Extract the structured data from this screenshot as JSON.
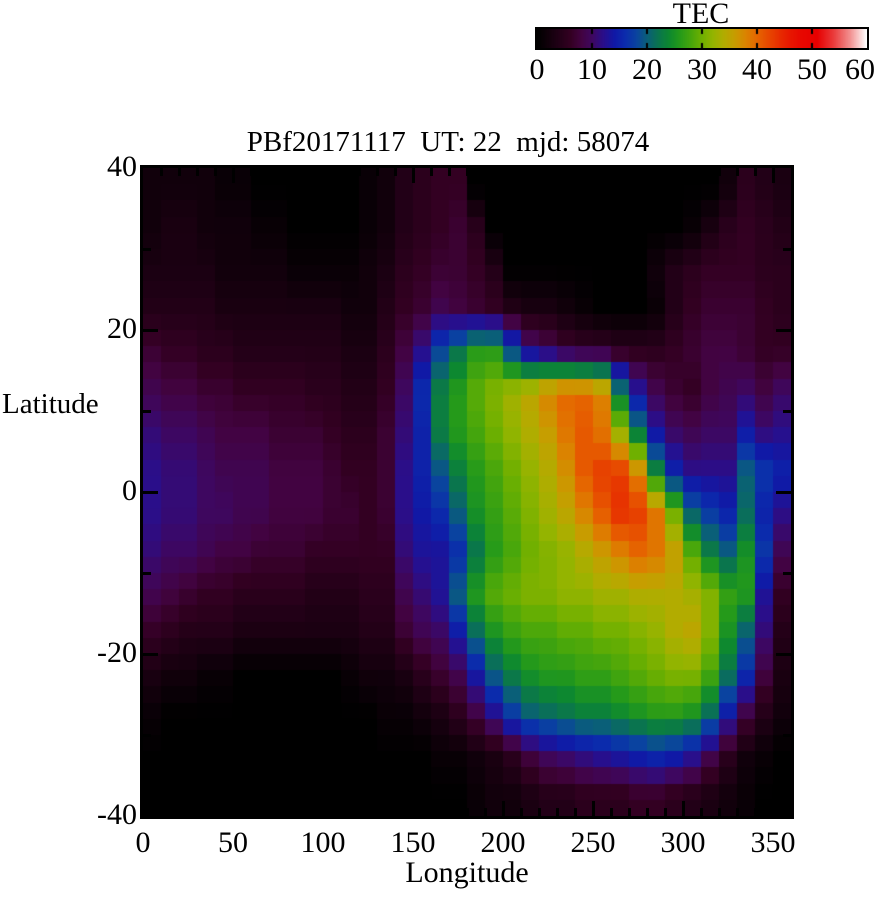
{
  "chart_data": {
    "type": "heatmap",
    "title": "PBf20171117  UT: 22  mjd: 58074",
    "xlabel": "Longitude",
    "ylabel": "Latitude",
    "xlim": [
      0,
      360
    ],
    "ylim": [
      -40,
      40
    ],
    "x_tick_labels": [
      0,
      50,
      100,
      150,
      200,
      250,
      300,
      350
    ],
    "y_tick_labels": [
      40,
      20,
      0,
      -20,
      -40
    ],
    "x_minor_step": 10,
    "y_minor_step": 10,
    "grid_lines": "off",
    "colorbar": {
      "title": "TEC",
      "min": 0,
      "max": 60,
      "tick_labels": [
        0,
        10,
        20,
        30,
        40,
        50,
        60
      ],
      "position": "top-right-horizontal"
    },
    "colormap_stops": [
      [
        0,
        "#000000"
      ],
      [
        3,
        "#1a0011"
      ],
      [
        6,
        "#330022"
      ],
      [
        8,
        "#420341"
      ],
      [
        10,
        "#3e0760"
      ],
      [
        12,
        "#2a0e8a"
      ],
      [
        14,
        "#1019a6"
      ],
      [
        16,
        "#0b2bac"
      ],
      [
        18,
        "#0a43a0"
      ],
      [
        20,
        "#0a5f78"
      ],
      [
        22,
        "#0a744f"
      ],
      [
        24,
        "#0d8830"
      ],
      [
        26,
        "#259a1a"
      ],
      [
        28,
        "#47a60c"
      ],
      [
        30,
        "#6fb000"
      ],
      [
        32,
        "#94b400"
      ],
      [
        34,
        "#b2ac00"
      ],
      [
        36,
        "#c89c00"
      ],
      [
        38,
        "#db8300"
      ],
      [
        40,
        "#e56700"
      ],
      [
        42,
        "#e74a00"
      ],
      [
        44,
        "#e72f00"
      ],
      [
        46,
        "#e71800"
      ],
      [
        48,
        "#e70800"
      ],
      [
        51,
        "#e60000"
      ],
      [
        54,
        "#ea3b3b"
      ],
      [
        57,
        "#f29090"
      ],
      [
        60,
        "#ffffff"
      ]
    ],
    "grid": {
      "lon_col_centers": [
        5,
        15,
        25,
        35,
        45,
        55,
        65,
        75,
        85,
        95,
        105,
        115,
        125,
        135,
        145,
        155,
        165,
        175,
        185,
        195,
        205,
        215,
        225,
        235,
        245,
        255,
        265,
        275,
        285,
        295,
        305,
        315,
        325,
        335,
        345,
        355
      ],
      "lat_row_centers": [
        37.5,
        32.5,
        27.5,
        22.5,
        17.5,
        12.5,
        7.5,
        2.5,
        -2.5,
        -7.5,
        -12.5,
        -17.5,
        -22.5,
        -27.5,
        -32.5,
        -37.5
      ],
      "tec_values": [
        [
          2,
          2,
          2,
          2,
          1,
          1,
          0,
          0,
          0,
          0,
          0,
          0,
          1,
          2,
          4,
          5,
          6,
          6,
          0,
          0,
          0,
          0,
          0,
          0,
          0,
          0,
          0,
          0,
          0,
          0,
          0,
          0,
          2,
          5,
          4,
          3
        ],
        [
          2,
          3,
          3,
          2,
          2,
          2,
          1,
          1,
          0,
          0,
          0,
          0,
          1,
          2,
          4,
          5,
          6,
          7,
          5,
          0,
          0,
          0,
          0,
          0,
          0,
          0,
          0,
          0,
          0,
          0,
          1,
          3,
          5,
          6,
          5,
          4
        ],
        [
          3,
          3,
          3,
          3,
          2,
          2,
          2,
          2,
          1,
          1,
          1,
          1,
          2,
          3,
          5,
          6,
          7,
          7,
          6,
          4,
          0,
          0,
          0,
          0,
          0,
          0,
          0,
          0,
          2,
          4,
          5,
          6,
          6,
          6,
          5,
          5
        ],
        [
          4,
          4,
          4,
          4,
          3,
          3,
          3,
          3,
          3,
          3,
          3,
          2,
          2,
          4,
          6,
          7,
          9,
          8,
          7,
          6,
          4,
          3,
          3,
          2,
          1,
          0,
          0,
          0,
          1,
          4,
          6,
          7,
          7,
          7,
          6,
          5
        ],
        [
          7,
          6,
          6,
          5,
          5,
          4,
          4,
          4,
          4,
          4,
          4,
          3,
          3,
          5,
          8,
          12,
          18,
          22,
          26,
          26,
          18,
          11,
          9,
          7,
          6,
          6,
          5,
          5,
          5,
          6,
          7,
          8,
          8,
          7,
          6,
          6
        ],
        [
          9,
          8,
          8,
          7,
          7,
          6,
          6,
          6,
          6,
          5,
          5,
          4,
          4,
          6,
          10,
          16,
          23,
          26,
          29,
          31,
          33,
          35,
          38,
          40,
          40,
          38,
          22,
          13,
          9,
          7,
          6,
          8,
          9,
          10,
          8,
          10
        ],
        [
          11,
          10,
          10,
          9,
          8,
          8,
          8,
          7,
          7,
          7,
          6,
          5,
          5,
          7,
          11,
          15,
          23,
          26,
          28,
          30,
          32,
          34,
          36,
          39,
          41,
          39,
          32,
          22,
          13,
          10,
          9,
          10,
          10,
          14,
          11,
          12
        ],
        [
          12,
          11,
          11,
          10,
          9,
          9,
          9,
          8,
          8,
          8,
          7,
          6,
          6,
          7,
          12,
          15,
          19,
          23,
          26,
          28,
          30,
          32,
          34,
          37,
          41,
          43,
          43,
          38,
          24,
          15,
          12,
          12,
          12,
          20,
          17,
          15
        ],
        [
          12,
          11,
          11,
          10,
          10,
          9,
          9,
          8,
          8,
          8,
          7,
          7,
          6,
          7,
          12,
          14,
          16,
          20,
          25,
          27,
          29,
          31,
          33,
          35,
          38,
          41,
          44,
          43,
          39,
          30,
          20,
          17,
          15,
          21,
          15,
          12
        ],
        [
          11,
          10,
          10,
          9,
          8,
          8,
          7,
          7,
          7,
          6,
          6,
          6,
          6,
          6,
          11,
          13,
          13,
          16,
          22,
          26,
          28,
          30,
          31,
          32,
          34,
          36,
          38,
          40,
          39,
          36,
          29,
          23,
          20,
          25,
          17,
          9
        ],
        [
          9,
          8,
          7,
          6,
          6,
          5,
          5,
          5,
          5,
          4,
          4,
          4,
          5,
          5,
          9,
          11,
          13,
          20,
          26,
          29,
          30,
          31,
          31,
          32,
          32,
          33,
          33,
          34,
          34,
          34,
          33,
          31,
          27,
          26,
          13,
          6
        ],
        [
          6,
          5,
          4,
          4,
          4,
          3,
          3,
          3,
          3,
          3,
          3,
          3,
          4,
          4,
          7,
          9,
          10,
          14,
          21,
          25,
          27,
          28,
          28,
          29,
          29,
          30,
          30,
          31,
          32,
          34,
          35,
          31,
          25,
          20,
          11,
          4
        ],
        [
          3,
          2,
          2,
          1,
          1,
          0,
          0,
          0,
          0,
          0,
          0,
          1,
          2,
          2,
          3,
          5,
          7,
          9,
          14,
          20,
          23,
          25,
          26,
          26,
          27,
          27,
          28,
          29,
          30,
          31,
          31,
          28,
          22,
          16,
          8,
          3
        ],
        [
          1,
          0,
          0,
          0,
          0,
          0,
          0,
          0,
          0,
          0,
          0,
          0,
          0,
          1,
          1,
          2,
          3,
          5,
          8,
          12,
          17,
          20,
          21,
          22,
          23,
          23,
          24,
          25,
          26,
          26,
          25,
          21,
          14,
          8,
          4,
          2
        ],
        [
          0,
          0,
          0,
          0,
          0,
          0,
          0,
          0,
          0,
          0,
          0,
          0,
          0,
          0,
          0,
          0,
          1,
          1,
          2,
          3,
          5,
          8,
          10,
          11,
          12,
          13,
          14,
          15,
          16,
          15,
          13,
          9,
          5,
          2,
          1,
          0
        ],
        [
          0,
          0,
          0,
          0,
          0,
          0,
          0,
          0,
          0,
          0,
          0,
          0,
          0,
          0,
          0,
          0,
          0,
          0,
          1,
          2,
          2,
          3,
          4,
          4,
          5,
          5,
          5,
          6,
          6,
          5,
          4,
          3,
          2,
          1,
          0,
          0
        ]
      ]
    }
  }
}
